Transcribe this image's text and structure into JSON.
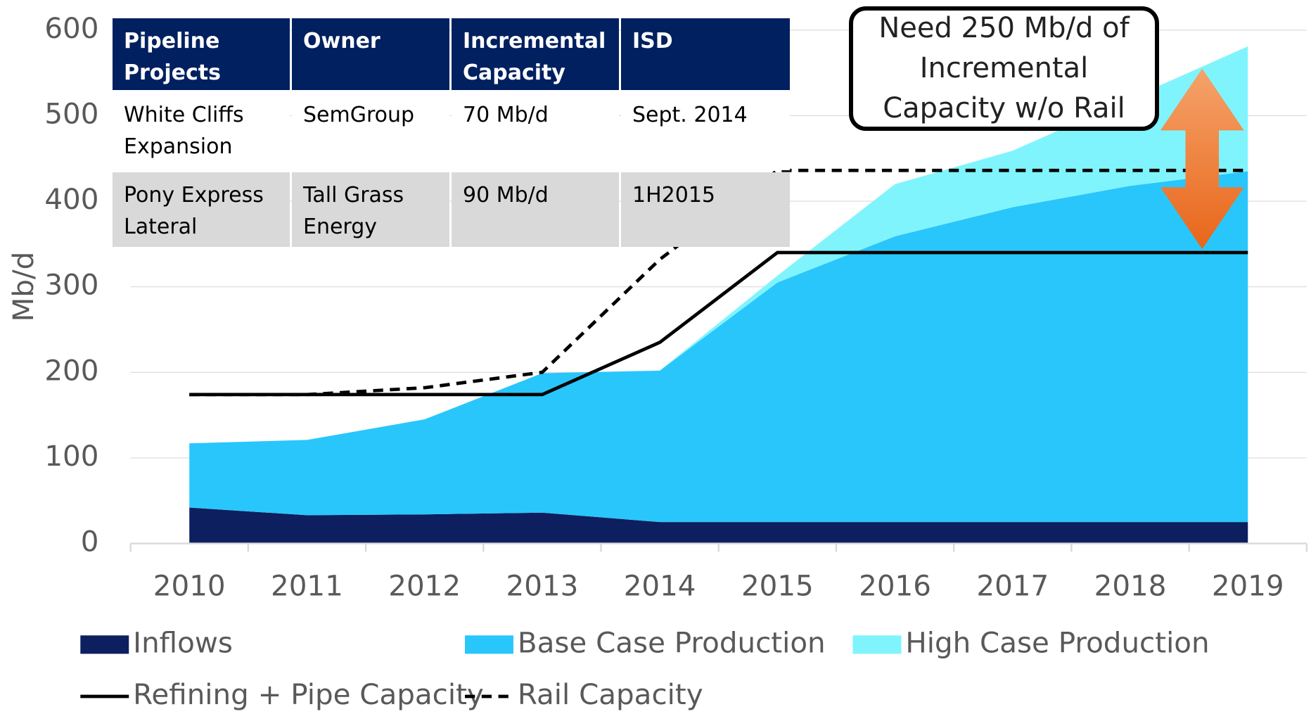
{
  "chart_data": {
    "type": "area",
    "ylabel": "Mb/d",
    "categories": [
      "2010",
      "2011",
      "2012",
      "2013",
      "2014",
      "2015",
      "2016",
      "2017",
      "2018",
      "2019"
    ],
    "ylim": [
      0,
      600
    ],
    "yticks": [
      0,
      100,
      200,
      300,
      400,
      500,
      600
    ],
    "grid": true,
    "series": [
      {
        "name": "Inflows",
        "color": "#0d1f5e",
        "kind": "stack",
        "values": [
          42,
          33,
          34,
          36,
          25,
          25,
          25,
          25,
          25,
          25
        ]
      },
      {
        "name": "Base Case Production",
        "color": "#29c6fb",
        "kind": "stack",
        "values": [
          75,
          88,
          111,
          163,
          177,
          280,
          334,
          368,
          393,
          410
        ]
      },
      {
        "name": "High Case Production",
        "color": "#80f4fd",
        "kind": "stack",
        "values": [
          0,
          0,
          0,
          0,
          0,
          8,
          61,
          66,
          102,
          146
        ]
      },
      {
        "name": "Refining + Pipe Capacity",
        "color": "#000000",
        "kind": "line",
        "dash": false,
        "values": [
          174,
          174,
          174,
          174,
          235,
          340,
          340,
          340,
          340,
          340
        ]
      },
      {
        "name": "Rail Capacity",
        "color": "#000000",
        "kind": "line",
        "dash": true,
        "values": [
          174,
          174,
          182,
          200,
          332,
          436,
          436,
          436,
          436,
          436
        ]
      }
    ],
    "annotation": "Need 250 Mb/d of Incremental Capacity w/o Rail"
  },
  "table": {
    "headers": [
      "Pipeline Projects",
      "Owner",
      "Incremental Capacity",
      "ISD"
    ],
    "rows": [
      [
        "White Cliffs Expansion",
        "SemGroup",
        "70 Mb/d",
        "Sept. 2014"
      ],
      [
        "Pony Express Lateral",
        "Tall Grass Energy",
        "90 Mb/d",
        "1H2015"
      ]
    ]
  }
}
